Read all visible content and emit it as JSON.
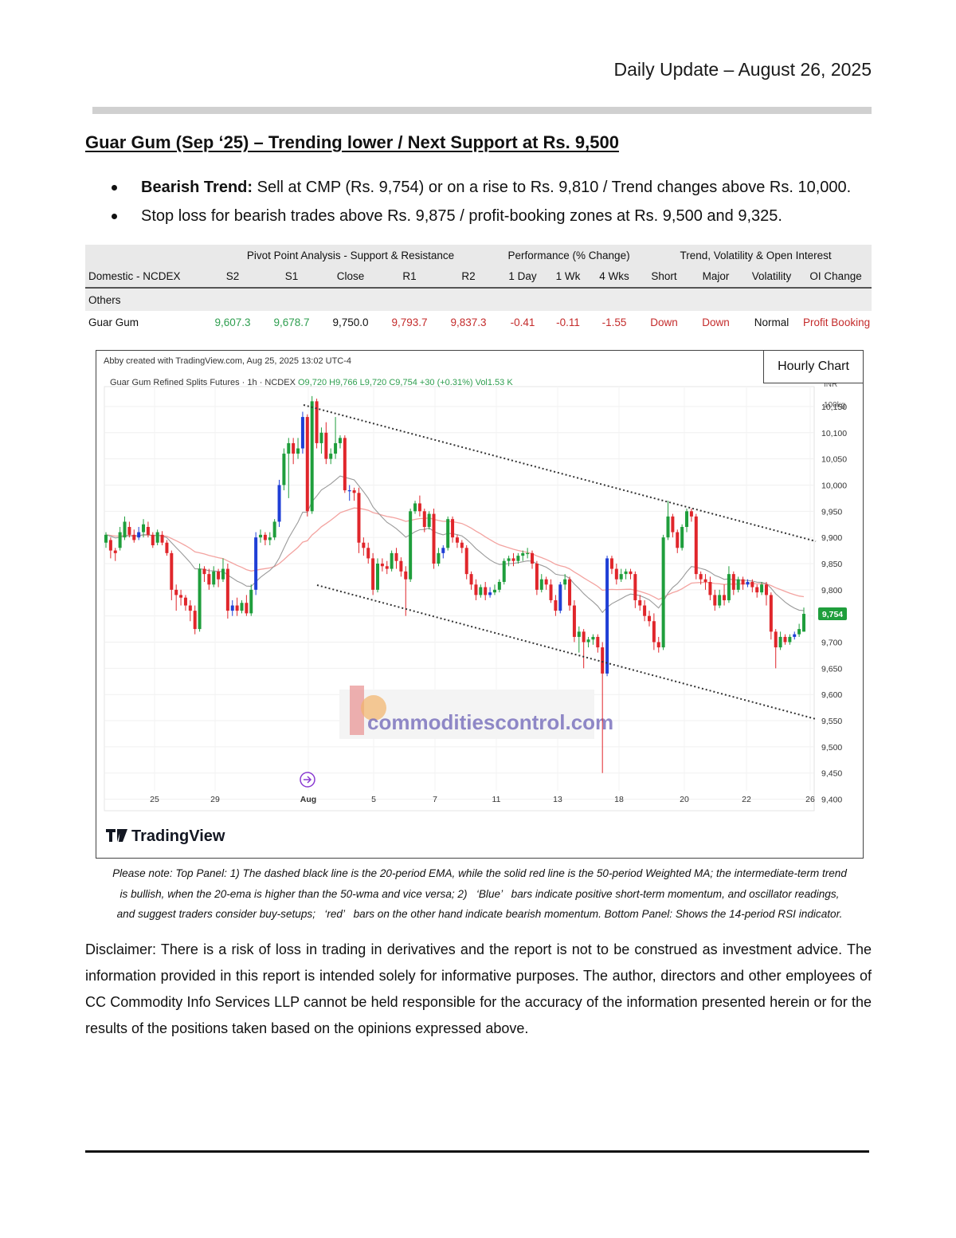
{
  "header": {
    "date": "Daily Update – August 26, 2025"
  },
  "report": {
    "title": "Guar Gum (Sep ‘25) – Trending lower / Next Support at Rs. 9,500",
    "bullets": [
      {
        "bold": "Bearish Trend:",
        "text": " Sell at CMP (Rs. 9,754) or on a rise to Rs. 9,810 / Trend changes above Rs. 10,000."
      },
      {
        "bold": "",
        "text": "Stop loss for bearish trades above Rs. 9,875 / profit-booking zones at Rs. 9,500 and 9,325."
      }
    ]
  },
  "table": {
    "groups": {
      "pivot": "Pivot Point Analysis - Support & Resistance",
      "performance": "Performance (% Change)",
      "trend": "Trend, Volatility & Open Interest"
    },
    "columns": [
      "Domestic - NCDEX",
      "S2",
      "S1",
      "Close",
      "R1",
      "R2",
      "1 Day",
      "1 Wk",
      "4 Wks",
      "Short",
      "Major",
      "Volatility",
      "OI Change"
    ],
    "section": "Others",
    "row": {
      "name": "Guar Gum",
      "s2": "9,607.3",
      "s1": "9,678.7",
      "close": "9,750.0",
      "r1": "9,793.7",
      "r2": "9,837.3",
      "day1": "-0.41",
      "wk1": "-0.11",
      "wk4": "-1.55",
      "short": "Down",
      "major": "Down",
      "volatility": "Normal",
      "oi": "Profit Booking"
    }
  },
  "chart": {
    "hourly_label": "Hourly Chart",
    "creator": "Abby created with TradingView.com, Aug 25, 2025 13:02 UTC-4",
    "instrument": "Guar Gum Refined Splits Futures · 1h · NCDEX",
    "ohlc": "O9,720  H9,766  L9,720  C9,754  +30 (+0.31%)  Vol1.53 K",
    "unit": "INR",
    "unit2": "100kg",
    "price_tag": "9,754",
    "brand": "TradingView",
    "watermark": "commoditiescontrol.com",
    "colors": {
      "up": "#1f9e3c",
      "down": "#e0262b",
      "blue": "#1f3fd6",
      "ema": "#9a9a9a",
      "wma": "#f3a3a0",
      "price_tag": "#1f9e3c"
    }
  },
  "chart_data": {
    "type": "candlestick",
    "y_ticks": [
      10150,
      10100,
      10050,
      10000,
      9950,
      9900,
      9850,
      9800,
      9750,
      9700,
      9650,
      9600,
      9550,
      9500,
      9450,
      9400
    ],
    "ylim": [
      9378,
      10188
    ],
    "x_ticks": [
      "25",
      "29",
      "Aug",
      "5",
      "7",
      "11",
      "13",
      "18",
      "20",
      "22",
      "26"
    ],
    "last_close": 9754,
    "candles": [
      [
        9890,
        9905,
        9880,
        9910
      ],
      [
        9895,
        9875,
        9860,
        9900
      ],
      [
        9875,
        9870,
        9855,
        9880
      ],
      [
        9880,
        9910,
        9875,
        9920
      ],
      [
        9900,
        9930,
        9895,
        9940
      ],
      [
        9920,
        9905,
        9900,
        9930
      ],
      [
        9905,
        9895,
        9890,
        9915
      ],
      [
        9900,
        9910,
        9895,
        9920
      ],
      [
        9910,
        9925,
        9900,
        9935
      ],
      [
        9920,
        9905,
        9900,
        9930
      ],
      [
        9905,
        9885,
        9880,
        9910
      ],
      [
        9890,
        9910,
        9885,
        9915
      ],
      [
        9905,
        9890,
        9885,
        9912
      ],
      [
        9890,
        9870,
        9865,
        9895
      ],
      [
        9870,
        9800,
        9780,
        9875
      ],
      [
        9800,
        9790,
        9760,
        9810
      ],
      [
        9790,
        9785,
        9770,
        9800
      ],
      [
        9785,
        9770,
        9760,
        9790
      ],
      [
        9770,
        9760,
        9740,
        9780
      ],
      [
        9760,
        9725,
        9715,
        9770
      ],
      [
        9725,
        9840,
        9720,
        9850
      ],
      [
        9840,
        9830,
        9815,
        9845
      ],
      [
        9830,
        9810,
        9800,
        9840
      ],
      [
        9810,
        9835,
        9805,
        9845
      ],
      [
        9835,
        9820,
        9805,
        9840
      ],
      [
        9820,
        9840,
        9815,
        9860
      ],
      [
        9840,
        9760,
        9745,
        9850
      ],
      [
        9760,
        9770,
        9750,
        9780
      ],
      [
        9770,
        9760,
        9750,
        9785
      ],
      [
        9760,
        9775,
        9755,
        9780
      ],
      [
        9775,
        9755,
        9750,
        9790
      ],
      [
        9755,
        9800,
        9750,
        9810
      ],
      [
        9800,
        9900,
        9790,
        9910
      ],
      [
        9900,
        9905,
        9890,
        9915
      ],
      [
        9905,
        9895,
        9885,
        9910
      ],
      [
        9895,
        9900,
        9885,
        9910
      ],
      [
        9900,
        9930,
        9895,
        9935
      ],
      [
        9930,
        10000,
        9920,
        10010
      ],
      [
        10000,
        10060,
        9990,
        10070
      ],
      [
        10060,
        10080,
        9975,
        10090
      ],
      [
        10080,
        10060,
        10040,
        10090
      ],
      [
        10060,
        10070,
        10050,
        10090
      ],
      [
        10070,
        10130,
        10060,
        10140
      ],
      [
        10130,
        9950,
        9940,
        10135
      ],
      [
        9950,
        10160,
        9945,
        10170
      ],
      [
        10160,
        10080,
        10070,
        10165
      ],
      [
        10080,
        10100,
        10060,
        10110
      ],
      [
        10100,
        10050,
        10040,
        10120
      ],
      [
        10050,
        10060,
        10040,
        10070
      ],
      [
        10060,
        10080,
        10050,
        10130
      ],
      [
        10080,
        10090,
        10070,
        10095
      ],
      [
        10090,
        9990,
        9985,
        10095
      ],
      [
        9990,
        9990,
        9970,
        10000
      ],
      [
        9990,
        9985,
        9970,
        9995
      ],
      [
        9985,
        9890,
        9870,
        9995
      ],
      [
        9890,
        9880,
        9865,
        9900
      ],
      [
        9880,
        9860,
        9850,
        9890
      ],
      [
        9860,
        9800,
        9790,
        9870
      ],
      [
        9800,
        9850,
        9795,
        9860
      ],
      [
        9850,
        9845,
        9835,
        9860
      ],
      [
        9845,
        9840,
        9830,
        9855
      ],
      [
        9840,
        9870,
        9835,
        9875
      ],
      [
        9870,
        9855,
        9840,
        9880
      ],
      [
        9855,
        9835,
        9825,
        9862
      ],
      [
        9835,
        9820,
        9750,
        9845
      ],
      [
        9820,
        9950,
        9815,
        9955
      ],
      [
        9950,
        9965,
        9945,
        9970
      ],
      [
        9965,
        9950,
        9940,
        9980
      ],
      [
        9950,
        9920,
        9910,
        9955
      ],
      [
        9920,
        9945,
        9915,
        9950
      ],
      [
        9945,
        9850,
        9840,
        9955
      ],
      [
        9850,
        9870,
        9845,
        9880
      ],
      [
        9870,
        9880,
        9860,
        9885
      ],
      [
        9880,
        9935,
        9875,
        9940
      ],
      [
        9935,
        9900,
        9890,
        9940
      ],
      [
        9900,
        9890,
        9880,
        9905
      ],
      [
        9890,
        9880,
        9870,
        9895
      ],
      [
        9880,
        9830,
        9820,
        9885
      ],
      [
        9830,
        9810,
        9800,
        9835
      ],
      [
        9810,
        9790,
        9780,
        9820
      ],
      [
        9790,
        9805,
        9785,
        9810
      ],
      [
        9805,
        9790,
        9780,
        9815
      ],
      [
        9790,
        9795,
        9785,
        9805
      ],
      [
        9795,
        9800,
        9790,
        9810
      ],
      [
        9800,
        9815,
        9795,
        9820
      ],
      [
        9815,
        9855,
        9810,
        9860
      ],
      [
        9855,
        9860,
        9845,
        9865
      ],
      [
        9860,
        9855,
        9845,
        9870
      ],
      [
        9855,
        9865,
        9850,
        9870
      ],
      [
        9865,
        9870,
        9855,
        9875
      ],
      [
        9870,
        9870,
        9860,
        9880
      ],
      [
        9870,
        9850,
        9840,
        9875
      ],
      [
        9850,
        9800,
        9790,
        9855
      ],
      [
        9800,
        9820,
        9795,
        9830
      ],
      [
        9820,
        9810,
        9800,
        9825
      ],
      [
        9810,
        9780,
        9775,
        9820
      ],
      [
        9780,
        9760,
        9750,
        9790
      ],
      [
        9760,
        9810,
        9755,
        9815
      ],
      [
        9810,
        9820,
        9800,
        9830
      ],
      [
        9820,
        9770,
        9760,
        9825
      ],
      [
        9770,
        9710,
        9700,
        9780
      ],
      [
        9710,
        9720,
        9680,
        9730
      ],
      [
        9720,
        9700,
        9650,
        9725
      ],
      [
        9700,
        9705,
        9690,
        9710
      ],
      [
        9705,
        9710,
        9695,
        9715
      ],
      [
        9710,
        9690,
        9680,
        9715
      ],
      [
        9690,
        9640,
        9450,
        9700
      ],
      [
        9640,
        9860,
        9635,
        9865
      ],
      [
        9860,
        9840,
        9830,
        9865
      ],
      [
        9840,
        9820,
        9810,
        9850
      ],
      [
        9820,
        9830,
        9815,
        9840
      ],
      [
        9830,
        9835,
        9820,
        9840
      ],
      [
        9835,
        9830,
        9820,
        9840
      ],
      [
        9830,
        9780,
        9765,
        9835
      ],
      [
        9780,
        9770,
        9760,
        9790
      ],
      [
        9770,
        9750,
        9740,
        9780
      ],
      [
        9750,
        9740,
        9730,
        9760
      ],
      [
        9740,
        9700,
        9685,
        9755
      ],
      [
        9700,
        9690,
        9680,
        9710
      ],
      [
        9690,
        9900,
        9685,
        9905
      ],
      [
        9900,
        9940,
        9895,
        9970
      ],
      [
        9940,
        9910,
        9900,
        9945
      ],
      [
        9910,
        9880,
        9870,
        9915
      ],
      [
        9880,
        9920,
        9875,
        9925
      ],
      [
        9920,
        9950,
        9910,
        9955
      ],
      [
        9950,
        9940,
        9930,
        9955
      ],
      [
        9940,
        9830,
        9820,
        9945
      ],
      [
        9830,
        9820,
        9810,
        9835
      ],
      [
        9820,
        9815,
        9800,
        9830
      ],
      [
        9815,
        9790,
        9780,
        9825
      ],
      [
        9790,
        9770,
        9760,
        9800
      ],
      [
        9770,
        9790,
        9765,
        9800
      ],
      [
        9790,
        9780,
        9770,
        9810
      ],
      [
        9780,
        9830,
        9775,
        9845
      ],
      [
        9830,
        9800,
        9790,
        9835
      ],
      [
        9800,
        9820,
        9795,
        9825
      ],
      [
        9820,
        9810,
        9800,
        9825
      ],
      [
        9810,
        9815,
        9805,
        9820
      ],
      [
        9815,
        9805,
        9795,
        9820
      ],
      [
        9805,
        9795,
        9785,
        9810
      ],
      [
        9795,
        9810,
        9790,
        9815
      ],
      [
        9810,
        9790,
        9770,
        9815
      ],
      [
        9790,
        9720,
        9705,
        9795
      ],
      [
        9720,
        9690,
        9650,
        9725
      ],
      [
        9690,
        9710,
        9685,
        9720
      ],
      [
        9710,
        9700,
        9695,
        9715
      ],
      [
        9700,
        9710,
        9695,
        9715
      ],
      [
        9710,
        9715,
        9705,
        9720
      ],
      [
        9715,
        9725,
        9710,
        9735
      ],
      [
        9720,
        9754,
        9720,
        9766
      ]
    ]
  }
}
